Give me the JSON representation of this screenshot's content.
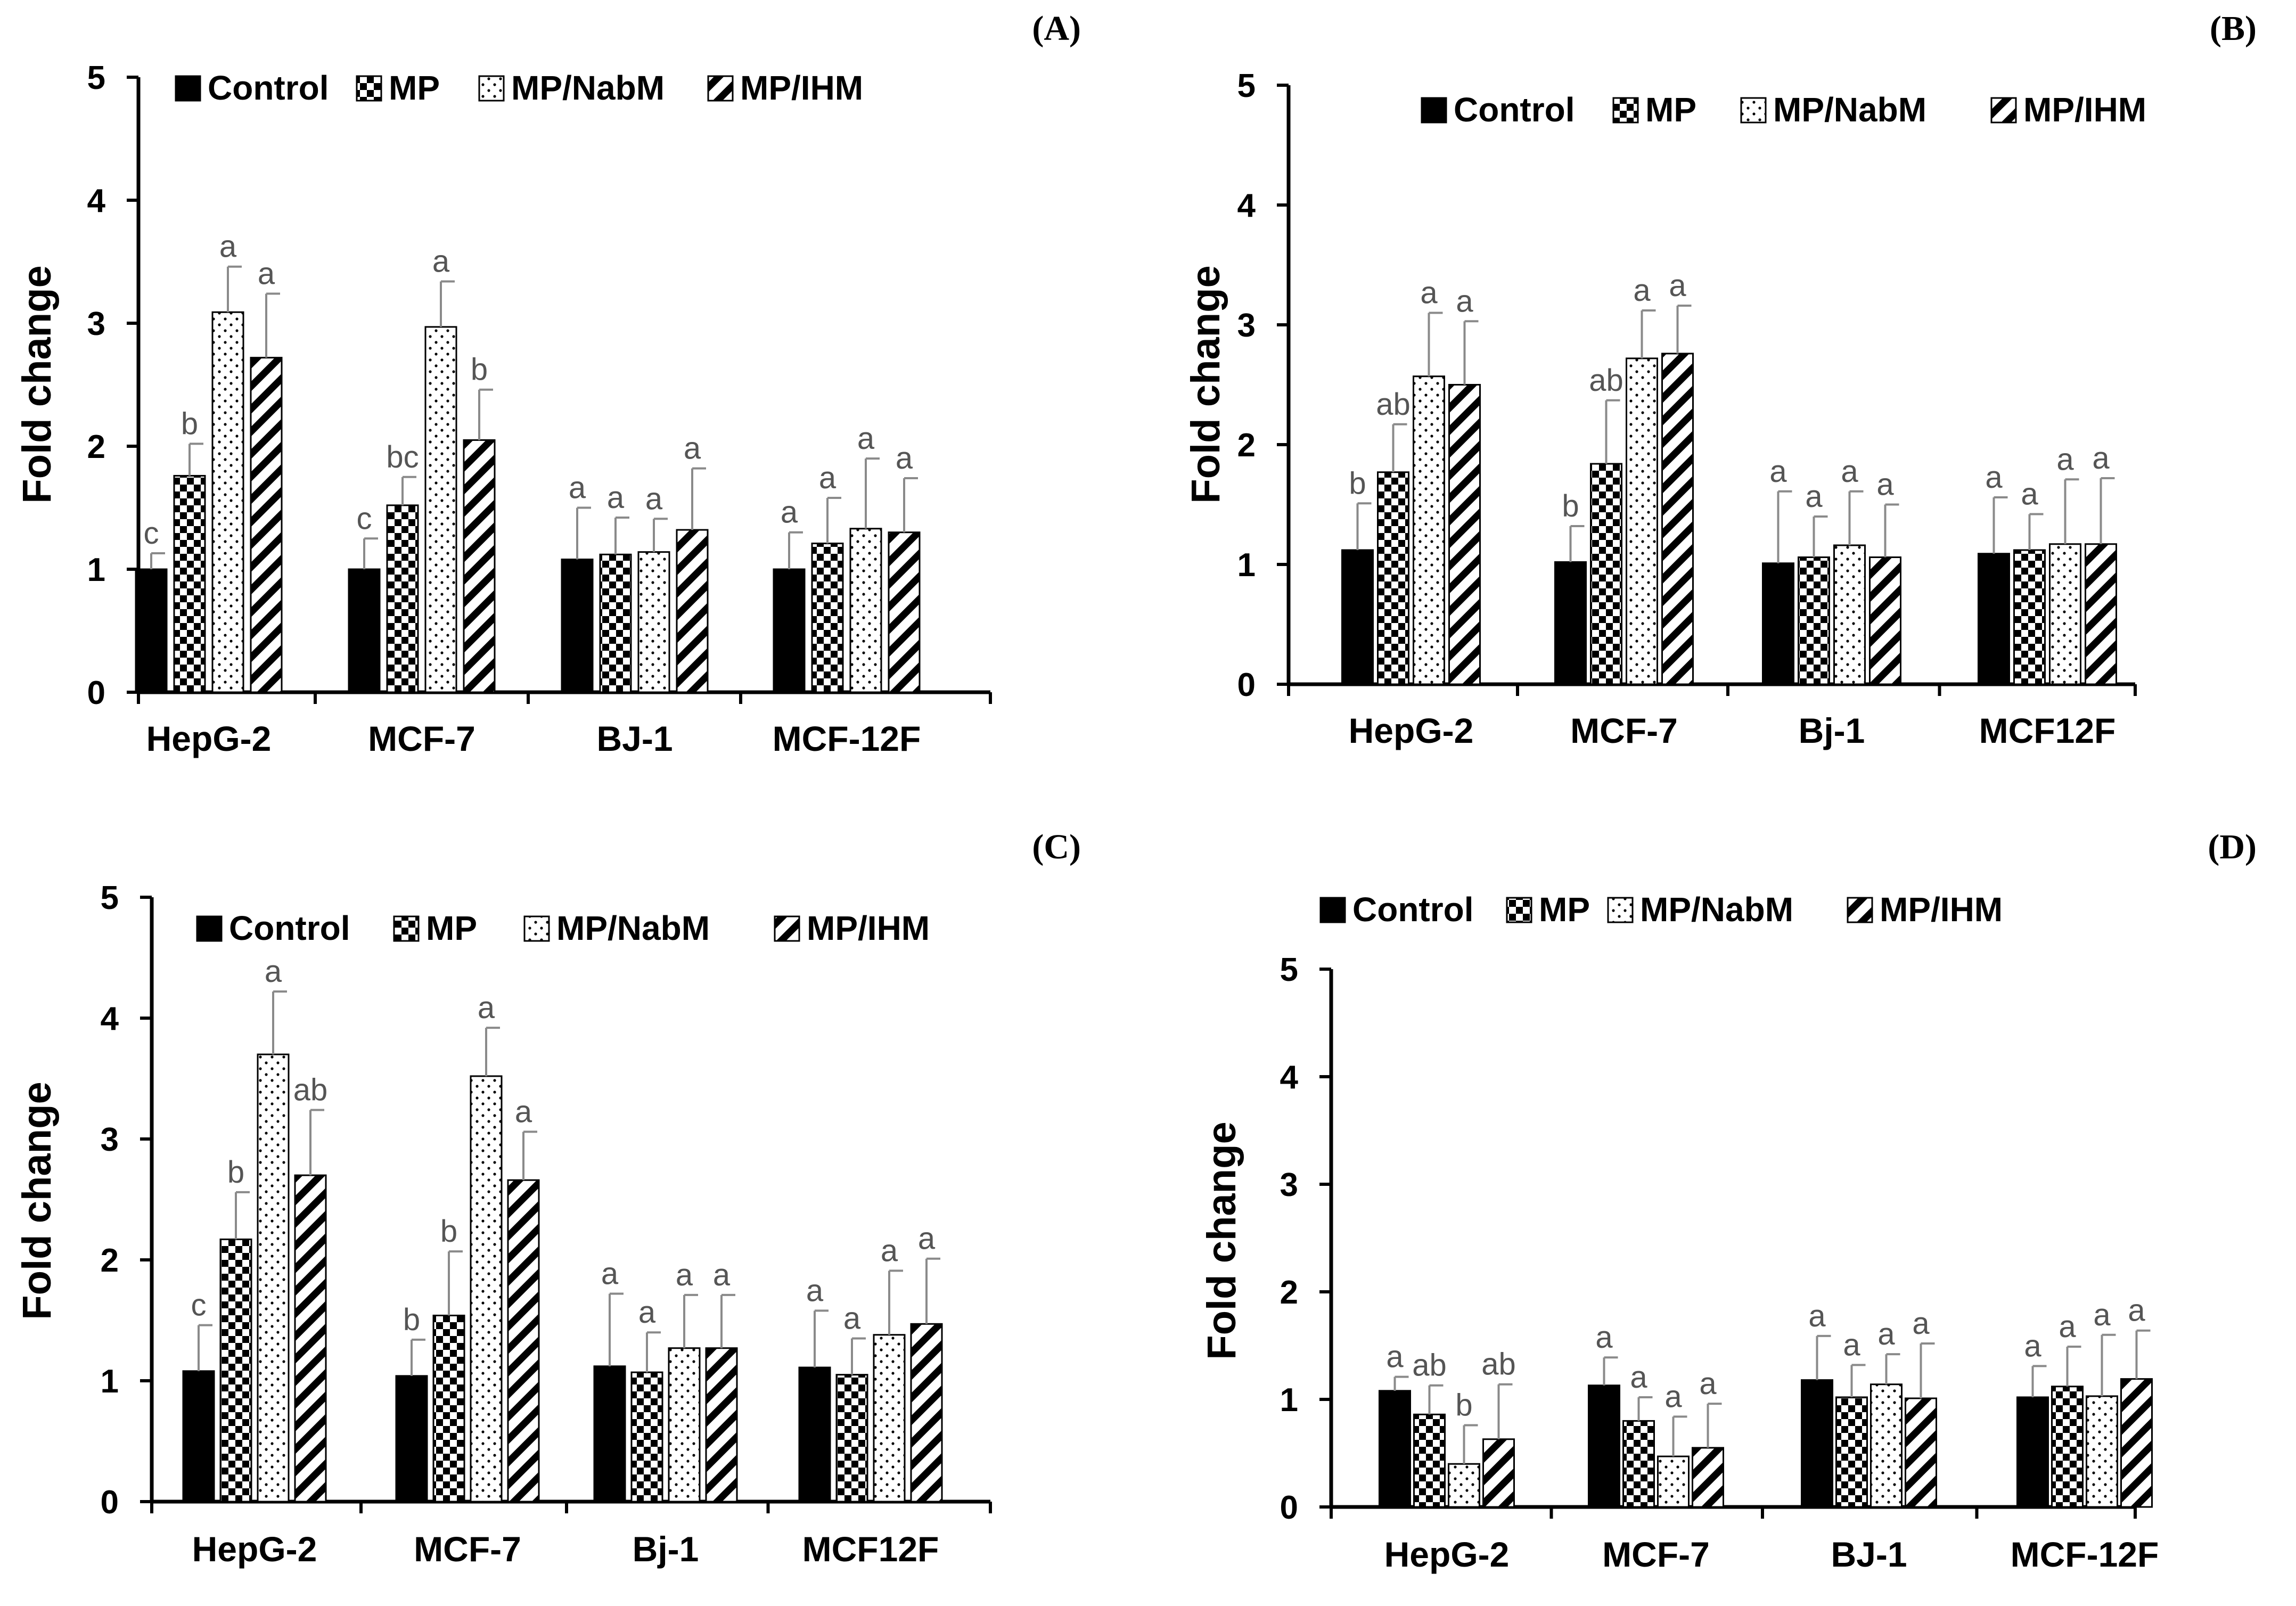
{
  "chart_data": [
    {
      "type": "bar",
      "panel_label": "(A)",
      "ylabel": "Fold change",
      "ylim": [
        0,
        5
      ],
      "yticks": [
        "0",
        "1",
        "2",
        "3",
        "4",
        "5"
      ],
      "categories": [
        "HepG-2",
        "MCF-7",
        "BJ-1",
        "MCF-12F"
      ],
      "series": [
        {
          "name": "Control",
          "pattern": "solid",
          "values": [
            1.0,
            1.0,
            1.08,
            1.0
          ],
          "errors": [
            0.13,
            0.25,
            0.42,
            0.3
          ],
          "labels": [
            "c",
            "c",
            "a",
            "a"
          ]
        },
        {
          "name": "MP",
          "pattern": "checker",
          "values": [
            1.76,
            1.52,
            1.12,
            1.21
          ],
          "errors": [
            0.26,
            0.23,
            0.3,
            0.37
          ],
          "labels": [
            "b",
            "bc",
            "a",
            "a"
          ]
        },
        {
          "name": "MP/NabM",
          "pattern": "dots",
          "values": [
            3.09,
            2.97,
            1.14,
            1.33
          ],
          "errors": [
            0.37,
            0.37,
            0.27,
            0.57
          ],
          "labels": [
            "a",
            "a",
            "a",
            "a"
          ]
        },
        {
          "name": "MP/IHM",
          "pattern": "diagonal",
          "values": [
            2.72,
            2.05,
            1.32,
            1.3
          ],
          "errors": [
            0.52,
            0.41,
            0.5,
            0.44
          ],
          "labels": [
            "a",
            "b",
            "a",
            "a"
          ]
        }
      ]
    },
    {
      "type": "bar",
      "panel_label": "(B)",
      "ylabel": "Fold change",
      "ylim": [
        0,
        5
      ],
      "yticks": [
        "0",
        "1",
        "2",
        "3",
        "4",
        "5"
      ],
      "categories": [
        "HepG-2",
        "MCF-7",
        "Bj-1",
        "MCF12F"
      ],
      "series": [
        {
          "name": "Control",
          "pattern": "solid",
          "values": [
            1.12,
            1.02,
            1.01,
            1.09
          ],
          "errors": [
            0.39,
            0.3,
            0.6,
            0.47
          ],
          "labels": [
            "b",
            "b",
            "a",
            "a"
          ]
        },
        {
          "name": "MP",
          "pattern": "checker",
          "values": [
            1.77,
            1.84,
            1.06,
            1.12
          ],
          "errors": [
            0.4,
            0.53,
            0.34,
            0.3
          ],
          "labels": [
            "ab",
            "ab",
            "a",
            "a"
          ]
        },
        {
          "name": "MP/NabM",
          "pattern": "dots",
          "values": [
            2.57,
            2.72,
            1.16,
            1.17
          ],
          "errors": [
            0.53,
            0.4,
            0.45,
            0.54
          ],
          "labels": [
            "a",
            "a",
            "a",
            "a"
          ]
        },
        {
          "name": "MP/IHM",
          "pattern": "diagonal",
          "values": [
            2.5,
            2.76,
            1.06,
            1.17
          ],
          "errors": [
            0.53,
            0.4,
            0.44,
            0.55
          ],
          "labels": [
            "a",
            "a",
            "a",
            "a"
          ]
        }
      ]
    },
    {
      "type": "bar",
      "panel_label": "(C)",
      "ylabel": "Fold change",
      "ylim": [
        0,
        5
      ],
      "yticks": [
        "0",
        "1",
        "2",
        "3",
        "4",
        "5"
      ],
      "categories": [
        "HepG-2",
        "MCF-7",
        "Bj-1",
        "MCF12F"
      ],
      "series": [
        {
          "name": "Control",
          "pattern": "solid",
          "values": [
            1.08,
            1.04,
            1.12,
            1.11
          ],
          "errors": [
            0.38,
            0.3,
            0.6,
            0.47
          ],
          "labels": [
            "c",
            "b",
            "a",
            "a"
          ]
        },
        {
          "name": "MP",
          "pattern": "checker",
          "values": [
            2.17,
            1.54,
            1.07,
            1.05
          ],
          "errors": [
            0.39,
            0.53,
            0.33,
            0.3
          ],
          "labels": [
            "b",
            "b",
            "a",
            "a"
          ]
        },
        {
          "name": "MP/NabM",
          "pattern": "dots",
          "values": [
            3.7,
            3.52,
            1.27,
            1.38
          ],
          "errors": [
            0.52,
            0.4,
            0.44,
            0.53
          ],
          "labels": [
            "a",
            "a",
            "a",
            "a"
          ]
        },
        {
          "name": "MP/IHM",
          "pattern": "diagonal",
          "values": [
            2.7,
            2.66,
            1.27,
            1.47
          ],
          "errors": [
            0.54,
            0.4,
            0.44,
            0.54
          ],
          "labels": [
            "ab",
            "a",
            "a",
            "a"
          ]
        }
      ]
    },
    {
      "type": "bar",
      "panel_label": "(D)",
      "ylabel": "Fold change",
      "ylim": [
        0,
        5
      ],
      "yticks": [
        "0",
        "1",
        "2",
        "3",
        "4",
        "5"
      ],
      "categories": [
        "HepG-2",
        "MCF-7",
        "BJ-1",
        "MCF-12F"
      ],
      "series": [
        {
          "name": "Control",
          "pattern": "solid",
          "values": [
            1.08,
            1.13,
            1.18,
            1.02
          ],
          "errors": [
            0.13,
            0.26,
            0.41,
            0.29
          ],
          "labels": [
            "a",
            "a",
            "a",
            "a"
          ]
        },
        {
          "name": "MP",
          "pattern": "checker",
          "values": [
            0.86,
            0.8,
            1.02,
            1.12
          ],
          "errors": [
            0.27,
            0.22,
            0.3,
            0.37
          ],
          "labels": [
            "ab",
            "a",
            "a",
            "a"
          ]
        },
        {
          "name": "MP/NabM",
          "pattern": "dots",
          "values": [
            0.4,
            0.47,
            1.14,
            1.03
          ],
          "errors": [
            0.36,
            0.37,
            0.28,
            0.57
          ],
          "labels": [
            "b",
            "a",
            "a",
            "a"
          ]
        },
        {
          "name": "MP/IHM",
          "pattern": "diagonal",
          "values": [
            0.63,
            0.55,
            1.01,
            1.19
          ],
          "errors": [
            0.51,
            0.41,
            0.51,
            0.45
          ],
          "labels": [
            "ab",
            "a",
            "a",
            "a"
          ]
        }
      ]
    }
  ]
}
